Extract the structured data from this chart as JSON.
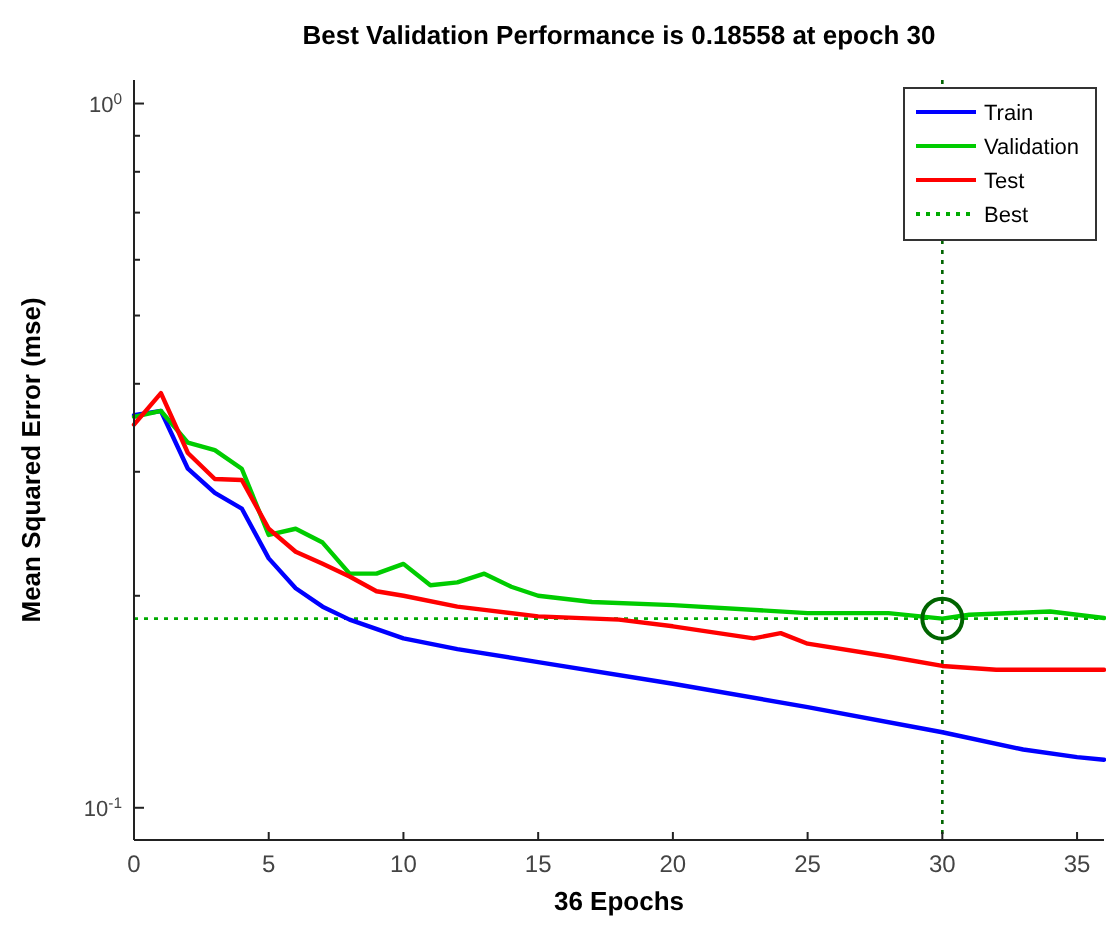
{
  "chart_data": {
    "type": "line",
    "title": "Best Validation Performance is 0.18558 at epoch 30",
    "xlabel": "36 Epochs",
    "ylabel": "Mean Squared Error  (mse)",
    "log": "y",
    "legend": "top right",
    "grid": false,
    "line_style": "solid",
    "marker": "none",
    "xlim": [
      0,
      36
    ],
    "xticks": [
      0,
      5,
      10,
      15,
      20,
      25,
      30,
      35
    ],
    "ylim": [
      0.09,
      1.08
    ],
    "yticks": [
      {
        "value": 0.1,
        "label": "10$^{-1}$"
      },
      {
        "value": 0.2,
        "label": null
      },
      {
        "value": 0.3,
        "label": null
      },
      {
        "value": 0.4,
        "label": null
      },
      {
        "value": 0.5,
        "label": null
      },
      {
        "value": 0.6,
        "label": null
      },
      {
        "value": 0.7,
        "label": null
      },
      {
        "value": 0.8,
        "label": null
      },
      {
        "value": 0.9,
        "label": null
      },
      {
        "value": 1,
        "label": "10$^{0}$"
      }
    ],
    "series": [
      {
        "name": "Train",
        "color": "#0000ff",
        "x": [
          0,
          1,
          2,
          3,
          4,
          5,
          6,
          7,
          8,
          10,
          12,
          15,
          20,
          25,
          30,
          33,
          35,
          36
        ],
        "values": [
          0.361,
          0.366,
          0.303,
          0.28,
          0.266,
          0.226,
          0.205,
          0.193,
          0.185,
          0.174,
          0.168,
          0.161,
          0.15,
          0.139,
          0.128,
          0.121,
          0.118,
          0.117
        ]
      },
      {
        "name": "Validation",
        "color": "#00cc00",
        "x": [
          0,
          1,
          2,
          3,
          4,
          5,
          6,
          7,
          8,
          9,
          10,
          11,
          12,
          13,
          14,
          15,
          17,
          20,
          25,
          28,
          30,
          31,
          34,
          36
        ],
        "values": [
          0.359,
          0.366,
          0.33,
          0.322,
          0.303,
          0.244,
          0.249,
          0.238,
          0.215,
          0.215,
          0.222,
          0.207,
          0.209,
          0.215,
          0.206,
          0.2,
          0.196,
          0.194,
          0.189,
          0.189,
          0.1856,
          0.188,
          0.19,
          0.186
        ]
      },
      {
        "name": "Test",
        "color": "#ff0000",
        "x": [
          0,
          1,
          2,
          3,
          4,
          5,
          6,
          7,
          8,
          9,
          10,
          12,
          13,
          15,
          18,
          20,
          23,
          24,
          25,
          28,
          30,
          32,
          36
        ],
        "values": [
          0.35,
          0.388,
          0.319,
          0.293,
          0.292,
          0.249,
          0.231,
          0.222,
          0.213,
          0.203,
          0.2,
          0.193,
          0.191,
          0.187,
          0.185,
          0.181,
          0.174,
          0.177,
          0.171,
          0.164,
          0.159,
          0.157,
          0.157
        ]
      },
      {
        "type": "scatter",
        "marker": "circle",
        "color": "#006400",
        "x": [
          30
        ],
        "values": [
          0.18558
        ]
      }
    ],
    "ref_lines": [
      {
        "axis": "y",
        "value": 0.18558,
        "label": "Best",
        "color": "#00aa00",
        "line_style": "dotted"
      },
      {
        "axis": "x",
        "value": 30,
        "color": "#006400",
        "line_style": "dotted"
      }
    ]
  }
}
